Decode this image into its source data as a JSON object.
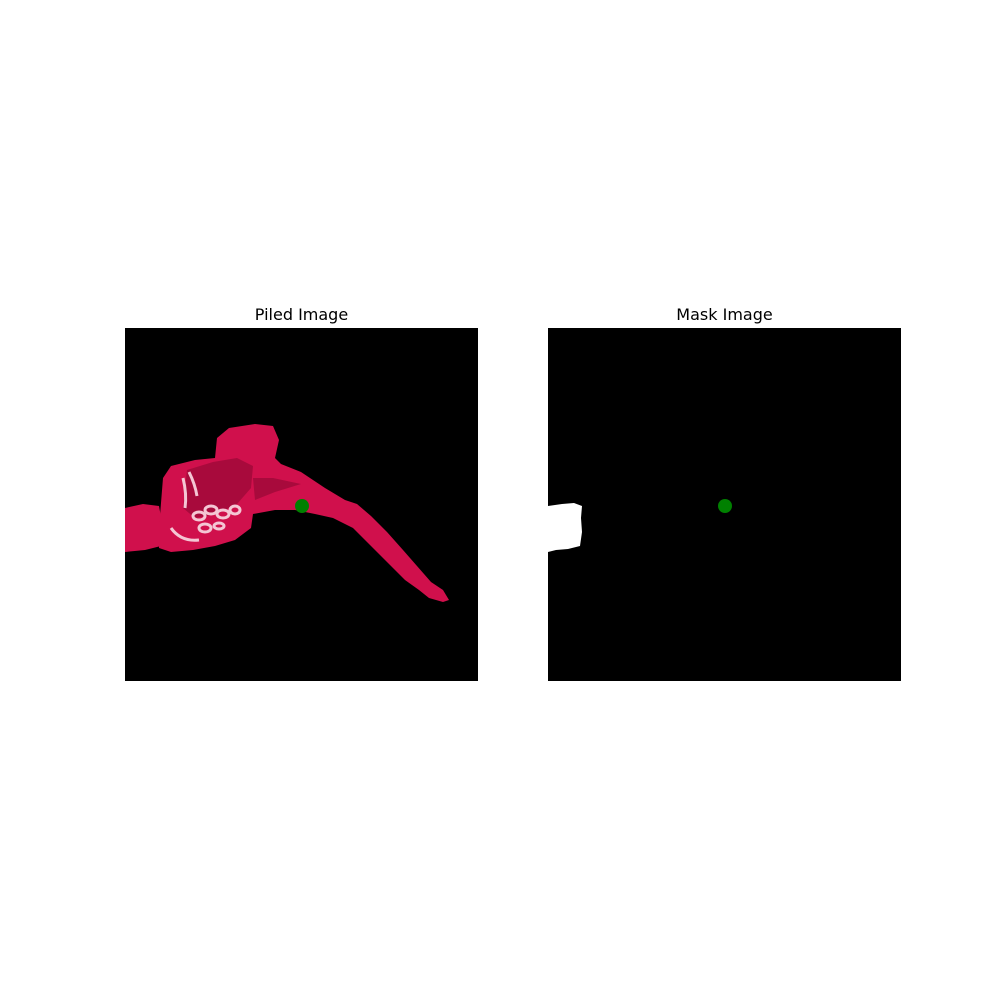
{
  "panels": {
    "left": {
      "title": "Piled Image"
    },
    "right": {
      "title": "Mask Image"
    }
  },
  "colors": {
    "background": "#000000",
    "cloth": "#d0104c",
    "cloth_shadow": "#a80a3c",
    "cloth_pattern": "#f4c6d4",
    "mask": "#ffffff",
    "marker": "#008000"
  }
}
